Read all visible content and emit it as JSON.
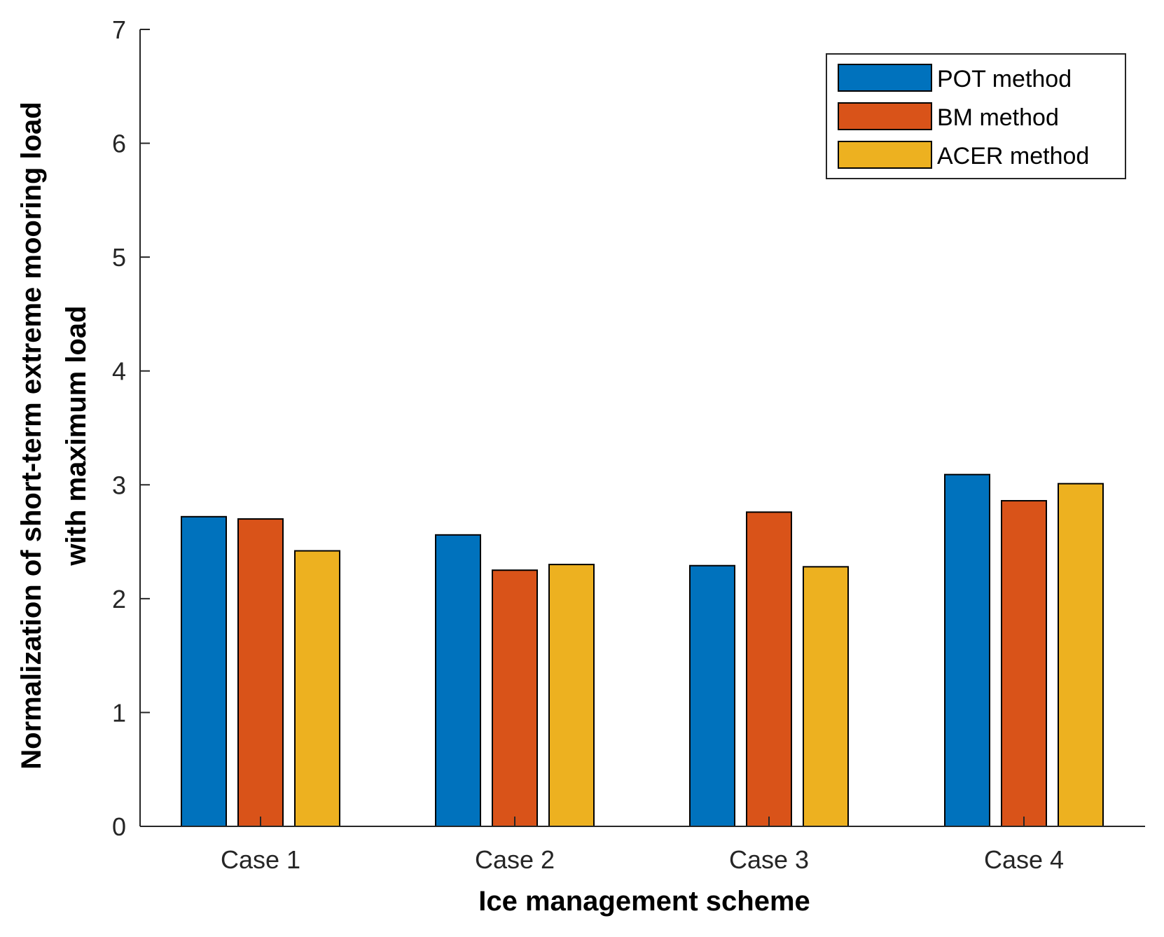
{
  "chart_data": {
    "type": "bar",
    "title": "",
    "xlabel": "Ice management scheme",
    "ylabel_lines": [
      "Normalization of short-term extreme mooring load",
      "with maximum load"
    ],
    "categories": [
      "Case 1",
      "Case 2",
      "Case 3",
      "Case 4"
    ],
    "ylim": [
      0,
      7
    ],
    "yticks": [
      "0",
      "1",
      "2",
      "3",
      "4",
      "5",
      "6",
      "7"
    ],
    "grid": false,
    "legend_position": "top-right",
    "series": [
      {
        "name": "POT method",
        "color": "#0072BD",
        "values": [
          2.72,
          2.56,
          2.29,
          3.09
        ]
      },
      {
        "name": "BM method",
        "color": "#D95319",
        "values": [
          2.7,
          2.25,
          2.76,
          2.86
        ]
      },
      {
        "name": "ACER method",
        "color": "#EDB120",
        "values": [
          2.42,
          2.3,
          2.28,
          3.01
        ]
      }
    ]
  }
}
